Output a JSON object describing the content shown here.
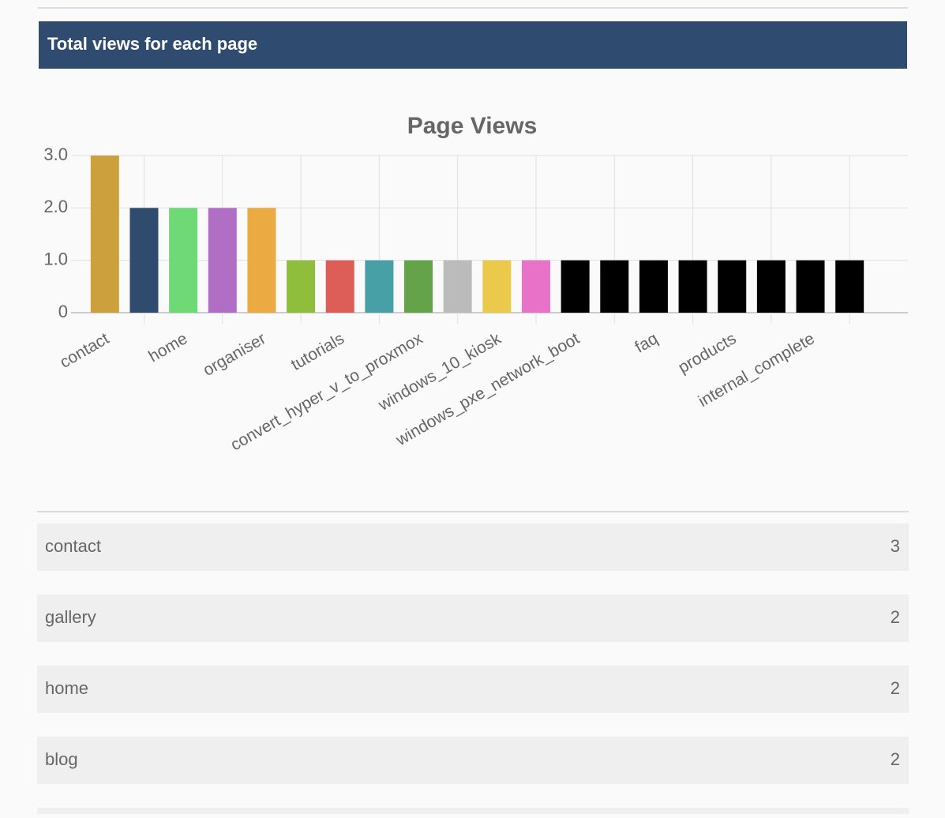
{
  "header": {
    "title": "Total views for each page"
  },
  "chart_data": {
    "type": "bar",
    "title": "Page Views",
    "categories": [
      "contact",
      null,
      "home",
      null,
      "organiser",
      null,
      "tutorials",
      null,
      "convert_hyper_v_to_proxmox",
      null,
      "windows_10_kiosk",
      null,
      "windows_pxe_network_boot",
      null,
      "faq",
      null,
      "products",
      null,
      "internal_complete",
      null
    ],
    "values": [
      3,
      2,
      2,
      2,
      2,
      1,
      1,
      1,
      1,
      1,
      1,
      1,
      1,
      1,
      1,
      1,
      1,
      1,
      1,
      1
    ],
    "colors": [
      "#cca03d",
      "#2f4b6e",
      "#6fd976",
      "#b06fc4",
      "#ebab42",
      "#8fbd3c",
      "#dc5e57",
      "#46a0a6",
      "#65a34a",
      "#bbbbbb",
      "#ebc94a",
      "#e872c8",
      "#000000",
      "#000000",
      "#000000",
      "#000000",
      "#000000",
      "#000000",
      "#000000",
      "#000000"
    ],
    "ylim": [
      0,
      3
    ],
    "yticks": [
      0,
      {
        "value": 1,
        "label": "1.0"
      },
      {
        "value": 2,
        "label": "2.0"
      },
      {
        "value": 3,
        "label": "3.0"
      }
    ],
    "grid": true
  },
  "table": {
    "rows": [
      [
        "contact",
        3
      ],
      [
        "gallery",
        2
      ],
      [
        "home",
        2
      ],
      [
        "blog",
        2
      ]
    ]
  }
}
